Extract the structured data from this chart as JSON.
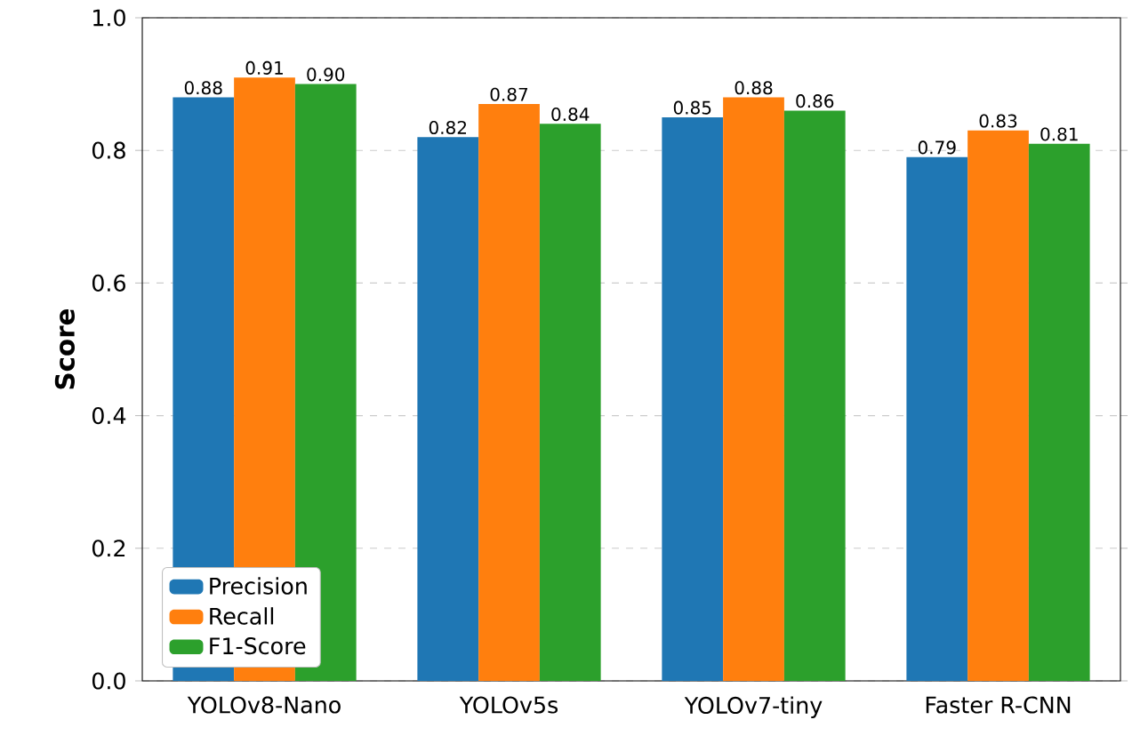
{
  "chart_data": {
    "type": "bar",
    "ylabel": "Score",
    "categories": [
      "YOLOv8-Nano",
      "YOLOv5s",
      "YOLOv7-tiny",
      "Faster R-CNN"
    ],
    "series": [
      {
        "name": "Precision",
        "color": "#1f77b4",
        "values": [
          0.88,
          0.82,
          0.85,
          0.79
        ],
        "value_labels": [
          "0.88",
          "0.82",
          "0.85",
          "0.79"
        ]
      },
      {
        "name": "Recall",
        "color": "#ff7f0e",
        "values": [
          0.91,
          0.87,
          0.88,
          0.83
        ],
        "value_labels": [
          "0.91",
          "0.87",
          "0.88",
          "0.83"
        ]
      },
      {
        "name": "F1-Score",
        "color": "#2ca02c",
        "values": [
          0.9,
          0.84,
          0.86,
          0.81
        ],
        "value_labels": [
          "0.90",
          "0.84",
          "0.86",
          "0.81"
        ]
      }
    ],
    "ylim": [
      0,
      1
    ],
    "yticks": [
      {
        "value": 0,
        "label": "0.0"
      },
      {
        "value": 0.2,
        "label": "0.2"
      },
      {
        "value": 0.4,
        "label": "0.4"
      },
      {
        "value": 0.6,
        "label": "0.6"
      },
      {
        "value": 0.8,
        "label": "0.8"
      },
      {
        "value": 1,
        "label": "1.0"
      }
    ],
    "grid": "y",
    "legend": "bottom left"
  }
}
